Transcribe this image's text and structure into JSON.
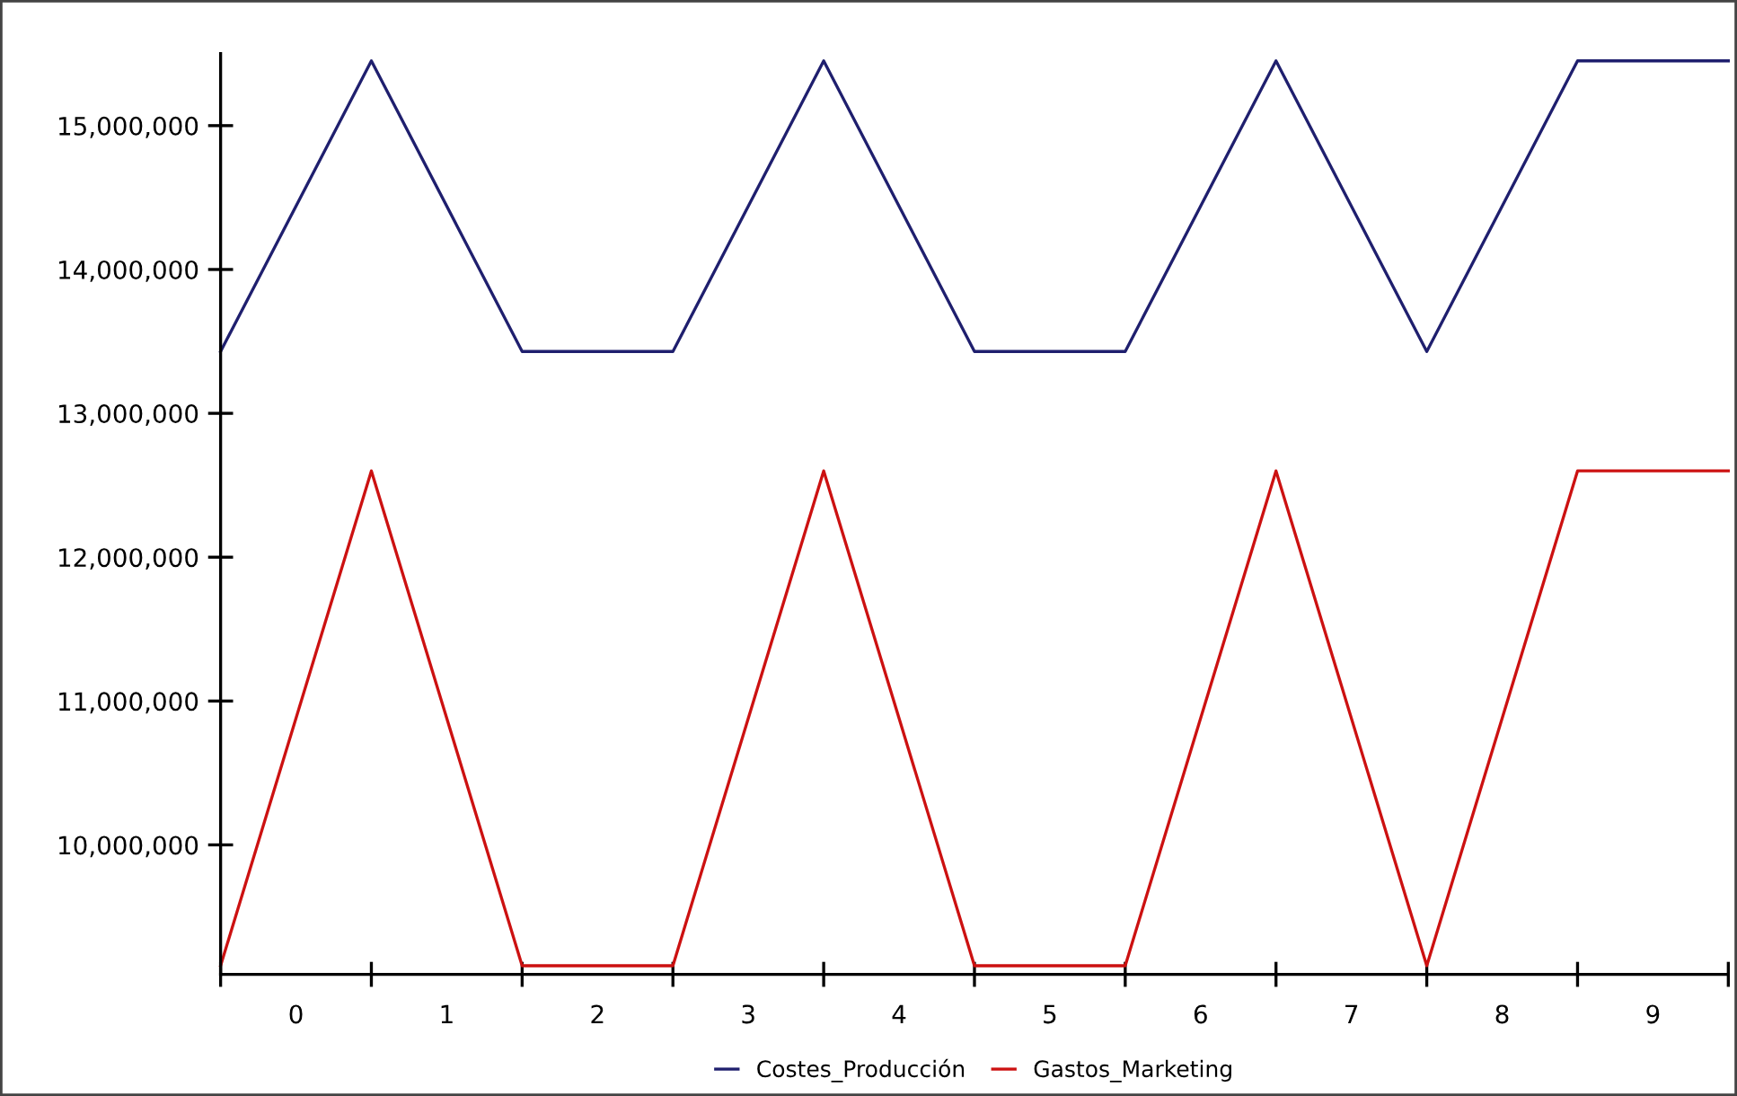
{
  "chart_data": {
    "type": "line",
    "x": [
      -0.5,
      0.5,
      1.5,
      2.5,
      3.5,
      4.5,
      5.5,
      6.5,
      7.5,
      8.5,
      9.5
    ],
    "series": [
      {
        "name": "Costes_Producción",
        "color": "#1f1f6e",
        "values": [
          13430000,
          15450000,
          13430000,
          13430000,
          15450000,
          13430000,
          13430000,
          15450000,
          13430000,
          15450000,
          15450000
        ]
      },
      {
        "name": "Gastos_Marketing",
        "color": "#cc1111",
        "values": [
          9160000,
          12600000,
          9160000,
          9160000,
          12600000,
          9160000,
          9160000,
          12600000,
          9160000,
          12600000,
          12600000
        ]
      }
    ],
    "xlim": [
      -0.5,
      9.5
    ],
    "xticks": [
      {
        "value": -0.5,
        "label": null
      },
      0,
      {
        "value": 0.5,
        "label": null
      },
      1,
      {
        "value": 1.5,
        "label": null
      },
      2,
      {
        "value": 2.5,
        "label": null
      },
      3,
      {
        "value": 3.5,
        "label": null
      },
      4,
      {
        "value": 4.5,
        "label": null
      },
      5,
      {
        "value": 5.5,
        "label": null
      },
      6,
      {
        "value": 6.5,
        "label": null
      },
      7,
      {
        "value": 7.5,
        "label": null
      },
      8,
      {
        "value": 8.5,
        "label": null
      },
      9,
      {
        "value": 9.5,
        "label": null
      }
    ],
    "ylim": [
      9100000,
      15500000
    ],
    "yticks": [
      {
        "value": 10000000,
        "label": "10,000,000"
      },
      {
        "value": 11000000,
        "label": "11,000,000"
      },
      {
        "value": 12000000,
        "label": "12,000,000"
      },
      {
        "value": 13000000,
        "label": "13,000,000"
      },
      {
        "value": 14000000,
        "label": "14,000,000"
      },
      {
        "value": 15000000,
        "label": "15,000,000"
      }
    ],
    "grid": false,
    "legend": "bottom",
    "marker": "none",
    "line_style": "solid"
  }
}
